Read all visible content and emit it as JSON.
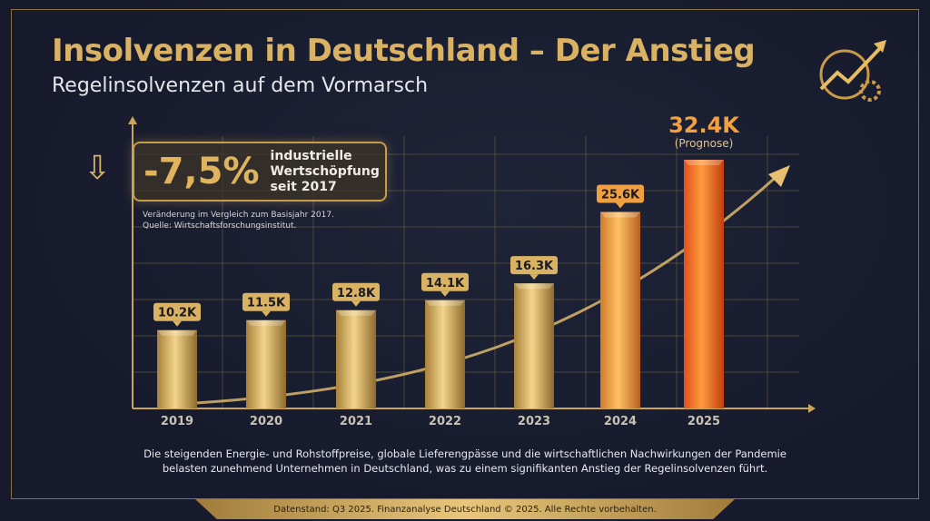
{
  "header": {
    "title": "Insolvenzen in Deutschland – Der Anstieg",
    "subtitle": "Regelinsolvenzen auf dem Vormarsch"
  },
  "callout": {
    "value": "-7,5%",
    "line1": "industrielle",
    "line2": "Wertschöpfung",
    "line3": "seit 2017",
    "icon": "arrow-down-icon",
    "note1": "Veränderung im Vergleich zum Basisjahr 2017.",
    "note2": "Quelle: Wirtschaftsforschungsinstitut."
  },
  "chart_data": {
    "type": "bar",
    "categories": [
      "2019",
      "2020",
      "2021",
      "2022",
      "2023",
      "2024",
      "2025"
    ],
    "values": [
      10.2,
      11.5,
      12.8,
      14.1,
      16.3,
      25.6,
      32.4
    ],
    "labels": [
      "10.2K",
      "11.5K",
      "12.8K",
      "14.1K",
      "16.3K",
      "25.6K",
      "32.4K"
    ],
    "annotation": "(Prognose)",
    "ylim": [
      0,
      34
    ],
    "grid": true,
    "colors": {
      "gold": "#d9b264",
      "orange_2024": "#f0a040",
      "orange_2025": "#f06a1a"
    }
  },
  "description": {
    "line1": "Die steigenden Energie- und Rohstoffpreise, globale Lieferengpässe und die wirtschaftlichen Nachwirkungen der Pandemie",
    "line2": "belasten zunehmend Unternehmen in Deutschland, was zu einem signifikanten Anstieg der Regelinsolvenzen führt."
  },
  "footer": "Datenstand: Q3 2025. Finanzanalyse Deutschland © 2025. Alle Rechte vorbehalten."
}
